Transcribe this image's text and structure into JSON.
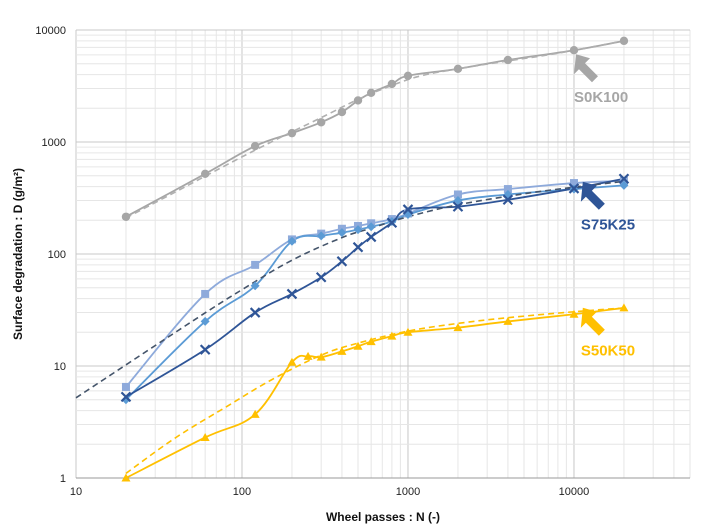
{
  "chart_data": {
    "type": "line",
    "xscale": "log",
    "yscale": "log",
    "xlim": [
      10,
      50000
    ],
    "ylim": [
      1,
      10000
    ],
    "grid": true,
    "xlabel": "Wheel passes : N (-)",
    "ylabel": "Surface degradation : D (g/m²)",
    "xticks": [
      {
        "value": 10,
        "label": "10"
      },
      {
        "value": 100,
        "label": "100"
      },
      {
        "value": 1000,
        "label": "1000"
      },
      {
        "value": 10000,
        "label": "10000"
      }
    ],
    "yticks": [
      {
        "value": 1,
        "label": "1"
      },
      {
        "value": 10,
        "label": "10"
      },
      {
        "value": 100,
        "label": "100"
      },
      {
        "value": 1000,
        "label": "1000"
      },
      {
        "value": 10000,
        "label": "10000"
      }
    ],
    "series": [
      {
        "key": "s0k100",
        "color": "#a6a6a6",
        "marker": "circle",
        "style": "solid",
        "x": [
          20,
          60,
          120,
          200,
          300,
          400,
          500,
          600,
          800,
          1000,
          2000,
          4000,
          10000,
          20000
        ],
        "y": [
          215,
          520,
          920,
          1200,
          1500,
          1850,
          2350,
          2750,
          3300,
          3900,
          4500,
          5400,
          6600,
          8000
        ]
      },
      {
        "key": "s0k100-fit",
        "color": "#b0b0b0",
        "style": "dashed",
        "x": [
          20,
          40,
          80,
          150,
          300,
          500,
          800,
          1200,
          2000,
          4000,
          8000,
          20000
        ],
        "y": [
          210,
          360,
          620,
          1000,
          1650,
          2400,
          3200,
          3900,
          4500,
          5300,
          6200,
          8000
        ]
      },
      {
        "key": "s75k25-a",
        "color": "#8eaadb",
        "marker": "square",
        "style": "solid",
        "x": [
          20,
          60,
          120,
          200,
          300,
          400,
          500,
          600,
          800,
          1000,
          2000,
          4000,
          10000,
          20000
        ],
        "y": [
          6.5,
          44,
          80,
          135,
          152,
          168,
          178,
          188,
          205,
          230,
          340,
          380,
          430,
          450
        ]
      },
      {
        "key": "s75k25-b",
        "color": "#5b9bd5",
        "marker": "diamond",
        "style": "solid",
        "x": [
          20,
          60,
          120,
          200,
          300,
          400,
          500,
          600,
          800,
          1000,
          2000,
          4000,
          10000,
          20000
        ],
        "y": [
          5,
          25,
          52,
          130,
          145,
          155,
          165,
          175,
          195,
          225,
          300,
          340,
          380,
          410
        ]
      },
      {
        "key": "s75k25-c",
        "color": "#2f5597",
        "marker": "x",
        "style": "solid",
        "x": [
          20,
          60,
          120,
          200,
          300,
          400,
          500,
          600,
          800,
          1000,
          2000,
          4000,
          10000,
          20000
        ],
        "y": [
          5.3,
          14,
          30,
          44,
          62,
          86,
          115,
          142,
          190,
          250,
          265,
          305,
          385,
          470
        ]
      },
      {
        "key": "s75k25-fit",
        "color": "#44546a",
        "style": "dashed",
        "x": [
          10,
          50,
          100,
          200,
          400,
          600,
          1000,
          2000,
          5000,
          10000,
          20000
        ],
        "y": [
          5.2,
          25,
          48,
          88,
          140,
          170,
          215,
          275,
          345,
          395,
          445
        ]
      },
      {
        "key": "s50k50",
        "color": "#ffc000",
        "marker": "triangle",
        "style": "solid",
        "x": [
          20,
          60,
          120,
          200,
          250,
          300,
          400,
          500,
          600,
          800,
          1000,
          2000,
          4000,
          10000,
          20000
        ],
        "y": [
          1.0,
          2.3,
          3.7,
          10.8,
          12.2,
          12.0,
          13.5,
          15,
          16.5,
          18.5,
          20,
          22,
          25,
          29,
          33
        ]
      },
      {
        "key": "s50k50-fit",
        "color": "#ffc000",
        "style": "dashed",
        "x": [
          20,
          40,
          80,
          150,
          300,
          500,
          1000,
          2000,
          4000,
          10000,
          20000
        ],
        "y": [
          1.1,
          2.3,
          4.3,
          7.5,
          12.5,
          16,
          20.5,
          24,
          27,
          30.5,
          33
        ]
      }
    ],
    "annotations": [
      {
        "text": "S0K100",
        "color": "#a6a6a6",
        "arrow_color": "#a6a6a6",
        "points_to": [
          10000,
          6600
        ]
      },
      {
        "text": "S75K25",
        "color": "#2f5597",
        "arrow_color": "#2f5597",
        "points_to": [
          11000,
          480
        ]
      },
      {
        "text": "S50K50",
        "color": "#ffc000",
        "arrow_color": "#ffc000",
        "points_to": [
          11000,
          36
        ]
      }
    ]
  }
}
